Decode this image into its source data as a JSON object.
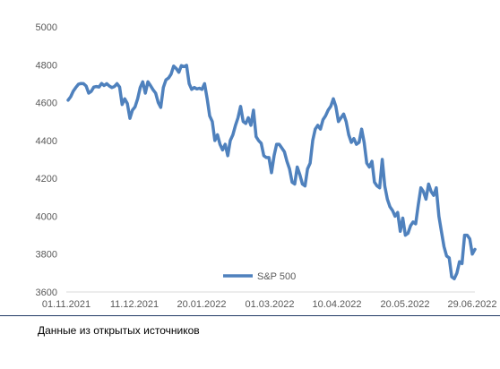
{
  "chart_data": {
    "type": "line",
    "title": "",
    "xlabel": "",
    "ylabel": "",
    "ylim": [
      3600,
      5000
    ],
    "yticks": [
      3600,
      3800,
      4000,
      4200,
      4400,
      4600,
      4800,
      5000
    ],
    "xticks": [
      "01.11.2021",
      "11.12.2021",
      "20.01.2022",
      "01.03.2022",
      "10.04.2022",
      "20.05.2022",
      "29.06.2022"
    ],
    "grid": false,
    "legend": "bottom-center",
    "color": "#4f81bd",
    "series": [
      {
        "name": "S&P 500",
        "values": [
          4613,
          4631,
          4660,
          4680,
          4697,
          4701,
          4700,
          4688,
          4650,
          4660,
          4682,
          4685,
          4682,
          4701,
          4690,
          4700,
          4688,
          4680,
          4685,
          4700,
          4682,
          4590,
          4620,
          4595,
          4517,
          4560,
          4577,
          4620,
          4680,
          4710,
          4650,
          4710,
          4690,
          4668,
          4650,
          4600,
          4575,
          4680,
          4720,
          4730,
          4750,
          4793,
          4780,
          4760,
          4795,
          4790,
          4797,
          4700,
          4670,
          4680,
          4672,
          4676,
          4670,
          4700,
          4620,
          4530,
          4500,
          4400,
          4430,
          4380,
          4350,
          4380,
          4320,
          4400,
          4430,
          4480,
          4520,
          4580,
          4500,
          4490,
          4520,
          4480,
          4560,
          4420,
          4400,
          4385,
          4320,
          4310,
          4310,
          4230,
          4320,
          4380,
          4380,
          4360,
          4340,
          4290,
          4250,
          4180,
          4170,
          4260,
          4220,
          4170,
          4160,
          4250,
          4280,
          4400,
          4460,
          4480,
          4460,
          4510,
          4530,
          4560,
          4580,
          4620,
          4580,
          4500,
          4520,
          4540,
          4500,
          4430,
          4390,
          4410,
          4380,
          4390,
          4460,
          4390,
          4280,
          4260,
          4290,
          4180,
          4160,
          4150,
          4300,
          4160,
          4090,
          4050,
          4030,
          4000,
          4020,
          3920,
          3990,
          3900,
          3910,
          3950,
          3970,
          3960,
          4060,
          4150,
          4130,
          4090,
          4170,
          4130,
          4110,
          4150,
          4000,
          3920,
          3840,
          3790,
          3780,
          3680,
          3670,
          3700,
          3760,
          3750,
          3900,
          3900,
          3880,
          3800,
          3825
        ]
      }
    ]
  },
  "source": "Данные из открытых источников"
}
